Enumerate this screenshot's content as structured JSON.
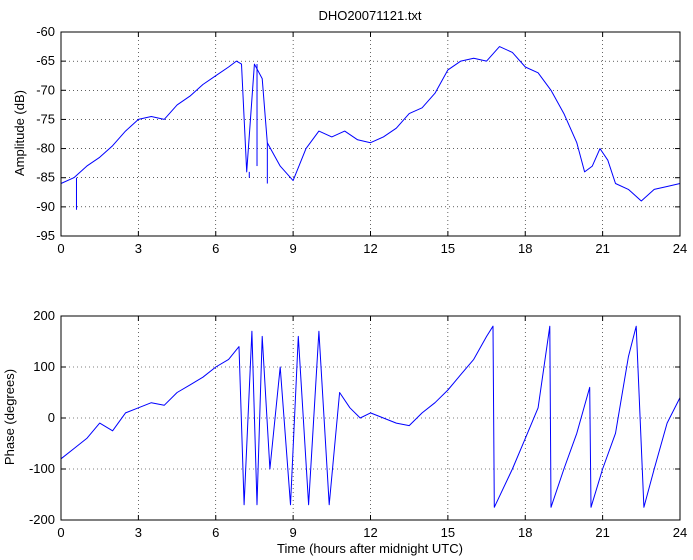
{
  "chart_data": [
    {
      "type": "line",
      "title": "DHO20071121.txt",
      "xlabel": "",
      "ylabel": "Amplitude (dB)",
      "xlim": [
        0,
        24
      ],
      "ylim": [
        -95,
        -60
      ],
      "xticks": [
        0,
        3,
        6,
        9,
        12,
        15,
        18,
        21,
        24
      ],
      "yticks": [
        -95,
        -90,
        -85,
        -80,
        -75,
        -70,
        -65,
        -60
      ],
      "grid": true,
      "series_color": "#0000ff",
      "series": [
        {
          "x": [
            0,
            0.5,
            1,
            1.5,
            2,
            2.5,
            3,
            3.5,
            4,
            4.5,
            5,
            5.5,
            6,
            6.5,
            6.8,
            7.0,
            7.2,
            7.5,
            7.8,
            8.0,
            8.5,
            9.0,
            9.5,
            10,
            10.5,
            11,
            11.5,
            12,
            12.5,
            13,
            13.5,
            14,
            14.5,
            15,
            15.5,
            16,
            16.5,
            17,
            17.5,
            18,
            18.5,
            19,
            19.5,
            20,
            20.3,
            20.6,
            20.9,
            21.2,
            21.5,
            22,
            22.5,
            23,
            23.5,
            24
          ],
          "y": [
            -86,
            -85,
            -83,
            -81.5,
            -79.5,
            -77,
            -75,
            -74.5,
            -75,
            -72.5,
            -71,
            -69,
            -67.5,
            -66,
            -65,
            -65.5,
            -84,
            -65.5,
            -68,
            -79,
            -83,
            -85.5,
            -80,
            -77,
            -78,
            -77,
            -78.5,
            -79,
            -78,
            -76.5,
            -74,
            -73,
            -70.5,
            -66.5,
            -65,
            -64.5,
            -65,
            -62.5,
            -63.5,
            -66,
            -67,
            -70,
            -74,
            -79,
            -84,
            -83,
            -80,
            -82,
            -86,
            -87,
            -89,
            -87,
            -86.5,
            -86
          ],
          "spikes": [
            {
              "x": 0.6,
              "y": -90.5
            },
            {
              "x": 7.3,
              "y": -85
            },
            {
              "x": 7.6,
              "y": -83
            },
            {
              "x": 8.0,
              "y": -86
            }
          ]
        }
      ]
    },
    {
      "type": "line",
      "title": "",
      "xlabel": "Time (hours after midnight UTC)",
      "ylabel": "Phase (degrees)",
      "xlim": [
        0,
        24
      ],
      "ylim": [
        -200,
        200
      ],
      "xticks": [
        0,
        3,
        6,
        9,
        12,
        15,
        18,
        21,
        24
      ],
      "yticks": [
        -200,
        -100,
        0,
        100,
        200
      ],
      "grid": true,
      "series_color": "#0000ff",
      "series": [
        {
          "x": [
            0,
            0.5,
            1,
            1.5,
            2,
            2.5,
            3,
            3.5,
            4,
            4.5,
            5,
            5.5,
            6,
            6.5,
            6.9,
            7.1,
            7.4,
            7.6,
            7.8,
            8.1,
            8.5,
            8.9,
            9.2,
            9.6,
            10,
            10.4,
            10.8,
            11.2,
            11.6,
            12,
            12.5,
            13,
            13.5,
            14,
            14.5,
            15,
            15.5,
            16,
            16.5,
            16.75,
            16.8,
            17.5,
            18,
            18.5,
            18.95,
            19.0,
            19.5,
            20.0,
            20.5,
            20.55,
            21,
            21.5,
            22.0,
            22.3,
            22.6,
            23,
            23.5,
            24
          ],
          "y": [
            -80,
            -60,
            -40,
            -10,
            -25,
            10,
            20,
            30,
            25,
            50,
            65,
            80,
            100,
            115,
            140,
            -170,
            170,
            -170,
            160,
            -100,
            100,
            -170,
            160,
            -170,
            170,
            -170,
            50,
            20,
            0,
            10,
            0,
            -10,
            -15,
            10,
            30,
            55,
            85,
            115,
            160,
            180,
            -175,
            -100,
            -40,
            20,
            180,
            -175,
            -100,
            -30,
            60,
            -175,
            -100,
            -30,
            120,
            180,
            -175,
            -100,
            -10,
            40
          ]
        }
      ]
    }
  ]
}
